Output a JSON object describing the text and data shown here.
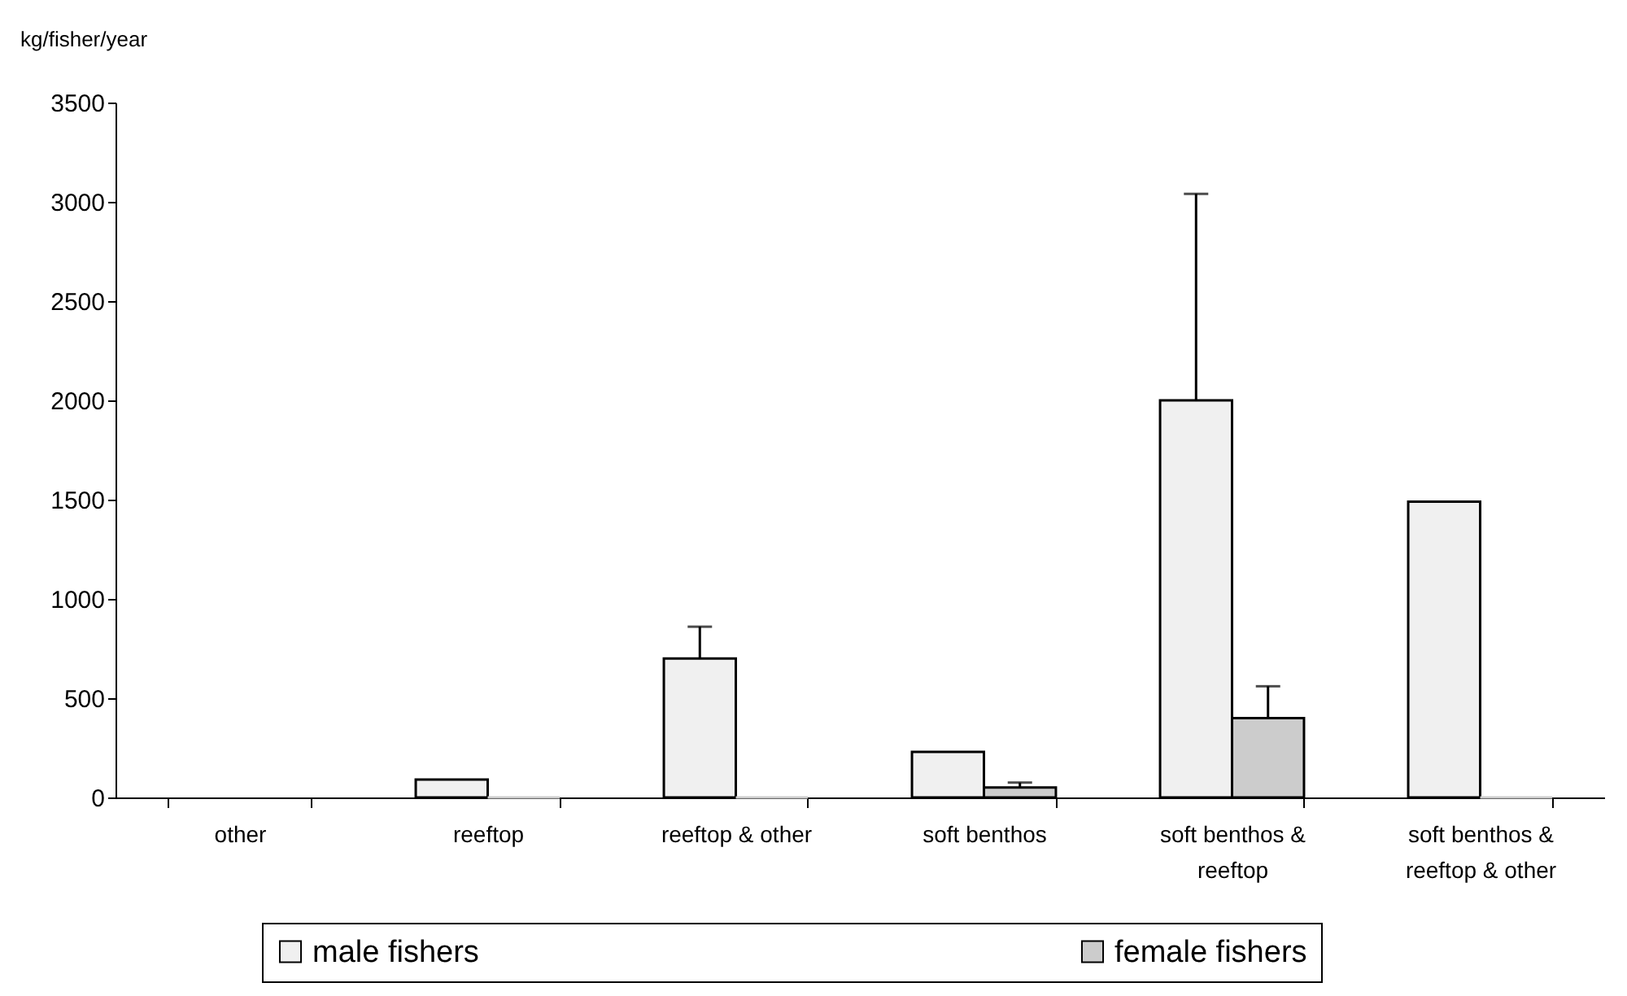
{
  "chart_data": {
    "type": "bar",
    "ylabel": "kg/fisher/year",
    "categories": [
      "other",
      "reeftop",
      "reeftop & other",
      "soft benthos",
      "soft benthos & reeftop",
      "soft benthos & reeftop & other"
    ],
    "series": [
      {
        "name": "male fishers",
        "color": "#f0f0f0",
        "values": [
          null,
          90,
          700,
          230,
          2000,
          1490
        ],
        "errors": [
          null,
          null,
          [
            700,
            860
          ],
          null,
          [
            2000,
            3040
          ],
          null
        ]
      },
      {
        "name": "female fishers",
        "color": "#cccccc",
        "values": [
          null,
          0,
          0,
          50,
          400,
          0
        ],
        "errors": [
          null,
          null,
          null,
          [
            50,
            75
          ],
          [
            400,
            560
          ],
          null
        ]
      }
    ],
    "ylim": [
      0,
      3500
    ],
    "yticks": [
      0,
      500,
      1000,
      1500,
      2000,
      2500,
      3000,
      3500
    ],
    "legend": "bottom"
  }
}
